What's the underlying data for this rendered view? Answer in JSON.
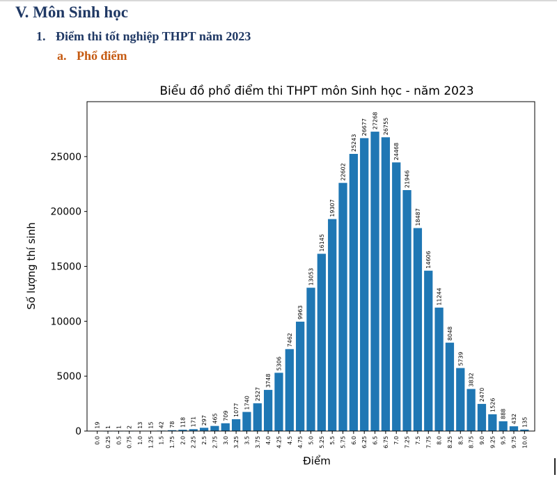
{
  "document": {
    "section_heading": "V. Môn Sinh học",
    "subheading_number": "1.",
    "subheading_text": "Điểm thi tốt nghiệp THPT năm 2023",
    "subsubheading_letter": "a.",
    "subsubheading_text": "Phổ điểm"
  },
  "colors": {
    "heading": "#1f3864",
    "subsubheading": "#c55a11",
    "bar": "#1f77b4"
  },
  "chart_data": {
    "type": "bar",
    "title": "Biểu đồ phổ điểm thi THPT môn Sinh học - năm 2023",
    "xlabel": "Điểm",
    "ylabel": "Số lượng thí sinh",
    "categories": [
      "0.0",
      "0.25",
      "0.5",
      "0.75",
      "1.0",
      "1.25",
      "1.5",
      "1.75",
      "2.0",
      "2.25",
      "2.5",
      "2.75",
      "3.0",
      "3.25",
      "3.5",
      "3.75",
      "4.0",
      "4.25",
      "4.5",
      "4.75",
      "5.0",
      "5.25",
      "5.5",
      "5.75",
      "6.0",
      "6.25",
      "6.5",
      "6.75",
      "7.0",
      "7.25",
      "7.5",
      "7.75",
      "8.0",
      "8.25",
      "8.5",
      "8.75",
      "9.0",
      "9.25",
      "9.5",
      "9.75",
      "10.0"
    ],
    "values": [
      19,
      1,
      1,
      2,
      13,
      15,
      42,
      78,
      118,
      171,
      297,
      465,
      709,
      1077,
      1740,
      2527,
      3748,
      5306,
      7462,
      9963,
      13053,
      16145,
      19307,
      22602,
      25243,
      26677,
      27268,
      26755,
      24468,
      21946,
      18487,
      14606,
      11244,
      8048,
      5739,
      3832,
      2470,
      1526,
      888,
      432,
      135
    ],
    "yticks": [
      0,
      5000,
      10000,
      15000,
      20000,
      25000
    ],
    "ylim": [
      0,
      30000
    ],
    "grid": false,
    "legend": false
  }
}
